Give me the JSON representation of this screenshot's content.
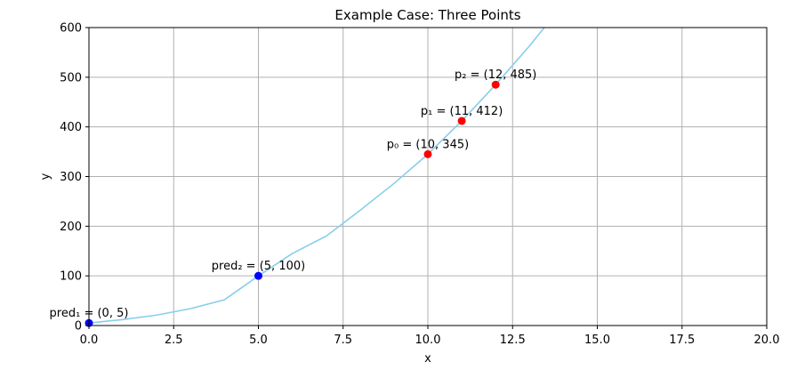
{
  "chart_data": {
    "type": "scatter",
    "title": "Example Case: Three Points",
    "xlabel": "x",
    "ylabel": "y",
    "xlim": [
      0,
      20
    ],
    "ylim": [
      0,
      600
    ],
    "x_ticks": [
      "0.0",
      "2.5",
      "5.0",
      "7.5",
      "10.0",
      "12.5",
      "15.0",
      "17.5",
      "20.0"
    ],
    "y_ticks": [
      "0",
      "100",
      "200",
      "300",
      "400",
      "500",
      "600"
    ],
    "grid": true,
    "curve": {
      "color": "#87ceeb",
      "x": [
        0,
        1,
        2,
        3,
        4,
        5,
        6,
        7,
        8,
        9,
        10,
        11,
        12,
        13,
        14
      ],
      "y": [
        5,
        12,
        21,
        34,
        52,
        100,
        145,
        180,
        232,
        286,
        345,
        412,
        485,
        563,
        648
      ]
    },
    "points": [
      {
        "x": 0,
        "y": 5,
        "color": "#0000ff",
        "label": "pred₁ = (0, 5)"
      },
      {
        "x": 5,
        "y": 100,
        "color": "#0000ff",
        "label": "pred₂ = (5, 100)"
      },
      {
        "x": 10,
        "y": 345,
        "color": "#ff0000",
        "label": "p₀ = (10, 345)"
      },
      {
        "x": 11,
        "y": 412,
        "color": "#ff0000",
        "label": "p₁ = (11, 412)"
      },
      {
        "x": 12,
        "y": 485,
        "color": "#ff0000",
        "label": "p₂ = (12, 485)"
      }
    ]
  }
}
